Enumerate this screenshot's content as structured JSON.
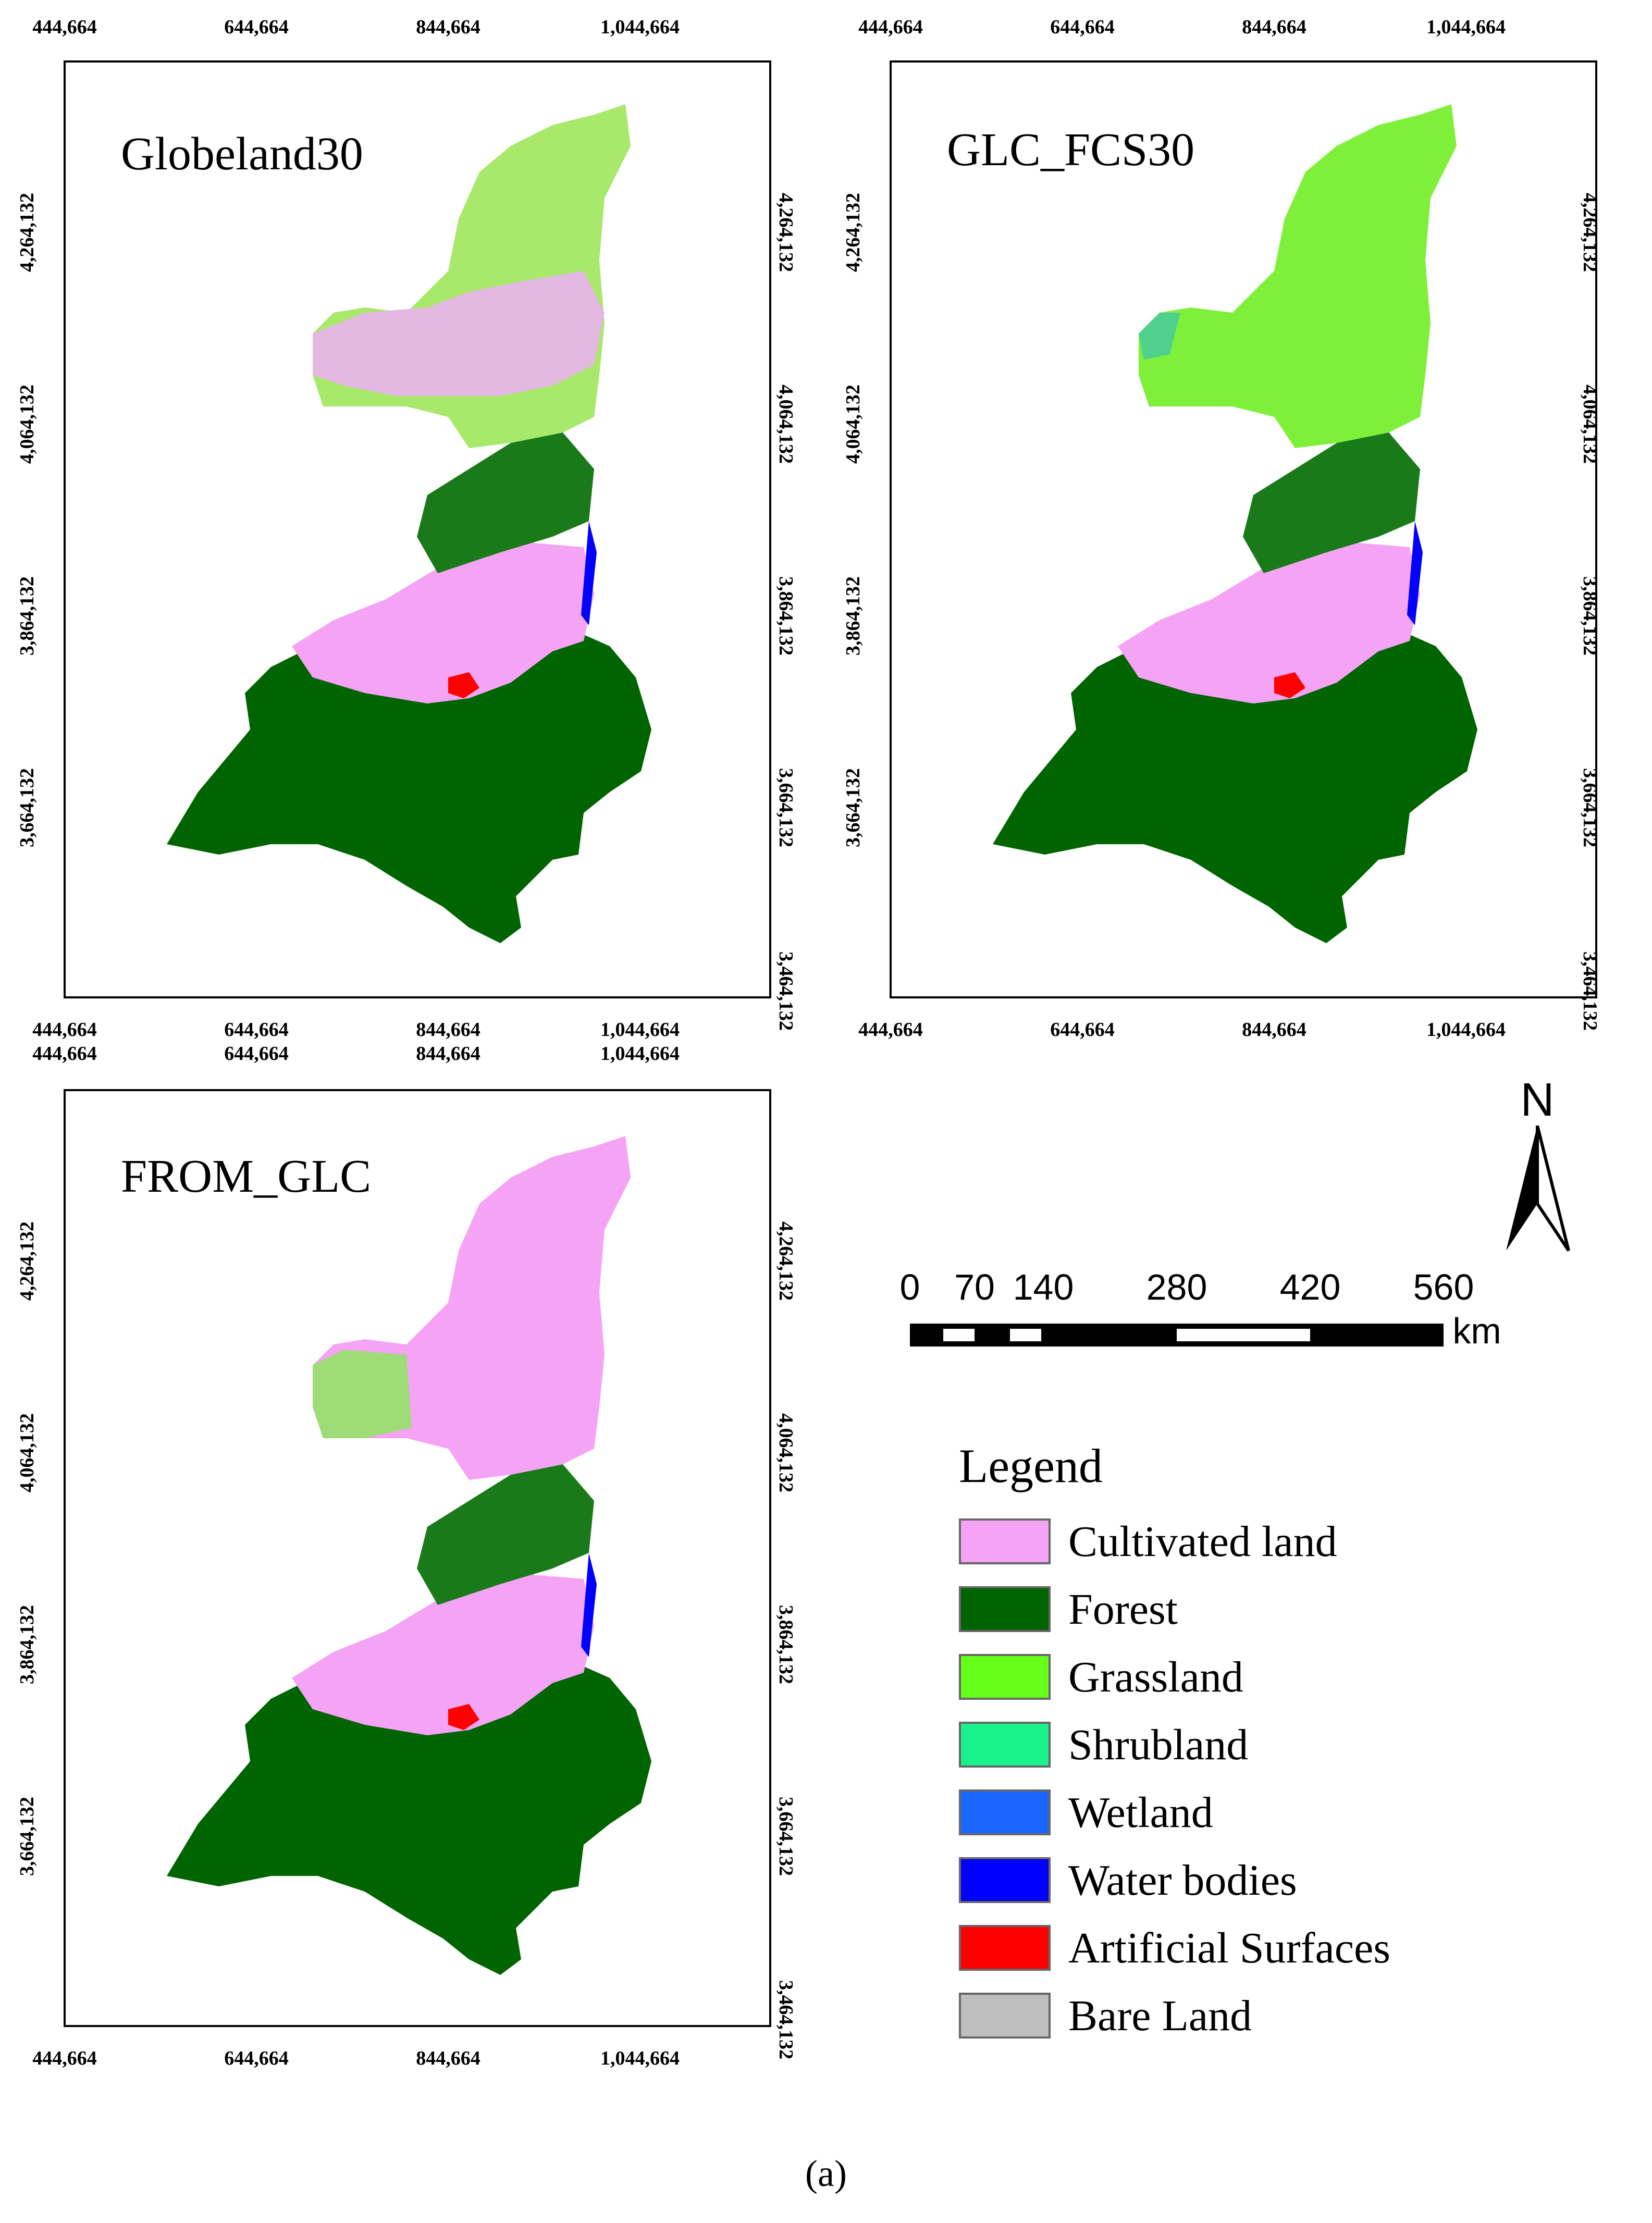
{
  "panels": [
    {
      "title": "Globeland30",
      "x_ticks": [
        "444,664",
        "644,664",
        "844,664",
        "1,044,664"
      ],
      "y_ticks": [
        "4,264,132",
        "4,064,132",
        "3,864,132",
        "3,664,132",
        "3,464,132"
      ]
    },
    {
      "title": "GLC_FCS30",
      "x_ticks": [
        "444,664",
        "644,664",
        "844,664",
        "1,044,664"
      ],
      "y_ticks": [
        "4,264,132",
        "4,064,132",
        "3,864,132",
        "3,664,132",
        "3,464,132"
      ]
    },
    {
      "title": "FROM_GLC",
      "x_ticks": [
        "444,664",
        "644,664",
        "844,664",
        "1,044,664"
      ],
      "y_ticks": [
        "4,264,132",
        "4,064,132",
        "3,864,132",
        "3,664,132",
        "3,464,132"
      ]
    }
  ],
  "north_arrow": {
    "label": "N",
    "icon": "north-arrow-icon"
  },
  "scale_bar": {
    "labels": [
      "0",
      "70",
      "140",
      "280",
      "420",
      "560"
    ],
    "unit": "km"
  },
  "legend": {
    "title": "Legend",
    "items": [
      {
        "label": "Cultivated land",
        "color": "#f5a3f5"
      },
      {
        "label": "Forest",
        "color": "#006400"
      },
      {
        "label": "Grassland",
        "color": "#66ff19"
      },
      {
        "label": "Shrubland",
        "color": "#19f28c"
      },
      {
        "label": "Wetland",
        "color": "#1a66ff"
      },
      {
        "label": "Water bodies",
        "color": "#0000ff"
      },
      {
        "label": "Artificial Surfaces",
        "color": "#ff0000"
      },
      {
        "label": "Bare Land",
        "color": "#bdbdbd"
      }
    ]
  },
  "caption": "(a)"
}
